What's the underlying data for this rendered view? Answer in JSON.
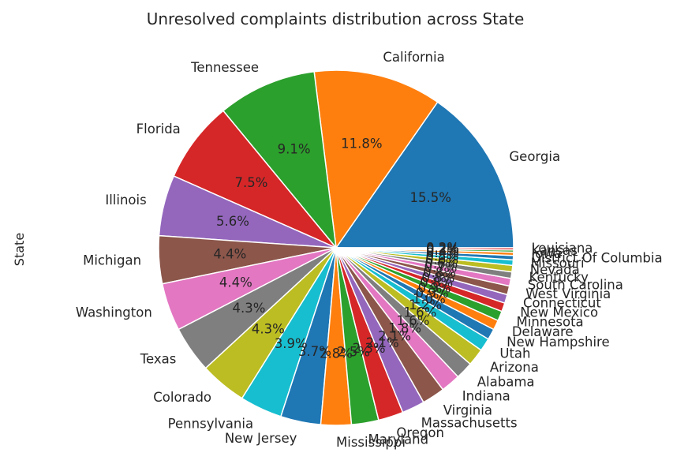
{
  "chart_data": {
    "type": "pie",
    "title": "Unresolved complaints distribution across State",
    "ylabel": "State",
    "start_angle_deg": 0,
    "direction": "counterclockwise",
    "categories": [
      "Georgia",
      "California",
      "Tennessee",
      "Florida",
      "Illinois",
      "Michigan",
      "Washington",
      "Texas",
      "Colorado",
      "Pennsylvania",
      "New Jersey",
      "Mississippi",
      "Maryland",
      "Oregon",
      "Massachusetts",
      "Virginia",
      "Indiana",
      "Alabama",
      "Arizona",
      "Utah",
      "New Hampshire",
      "Delaware",
      "Minnesota",
      "New Mexico",
      "Connecticut",
      "West Virginia",
      "South Carolina",
      "Kentucky",
      "Nevada",
      "Missouri",
      "District Of Columbia",
      "Iowa",
      "Kansas",
      "Louisiana"
    ],
    "values": [
      15.5,
      11.8,
      9.1,
      7.5,
      5.6,
      4.4,
      4.4,
      4.3,
      4.3,
      3.9,
      3.7,
      2.8,
      2.5,
      2.3,
      2.1,
      2.1,
      1.8,
      1.6,
      1.6,
      1.2,
      1.0,
      0.9,
      0.9,
      0.8,
      0.8,
      0.8,
      0.7,
      0.6,
      0.6,
      0.5,
      0.4,
      0.3,
      0.2,
      0.2
    ],
    "pct_labels": [
      "15.5%",
      "11.8%",
      "9.1%",
      "7.5%",
      "5.6%",
      "4.4%",
      "4.4%",
      "4.3%",
      "4.3%",
      "3.9%",
      "3.7%",
      "2.8%",
      "2.5%",
      "2.3%",
      "2.1%",
      "2.1%",
      "1.8%",
      "1.6%",
      "1.6%",
      "1.2%",
      "1.0%",
      "0.9%",
      "0.9%",
      "0.8%",
      "0.8%",
      "0.8%",
      "0.7%",
      "0.6%",
      "0.6%",
      "0.5%",
      "0.4%",
      "0.3%",
      "0.2%",
      "0.2%"
    ],
    "colors": [
      "#1f77b4",
      "#ff7f0e",
      "#2ca02c",
      "#d62728",
      "#9467bd",
      "#8c564b",
      "#e377c2",
      "#7f7f7f",
      "#bcbd22",
      "#17becf"
    ]
  }
}
